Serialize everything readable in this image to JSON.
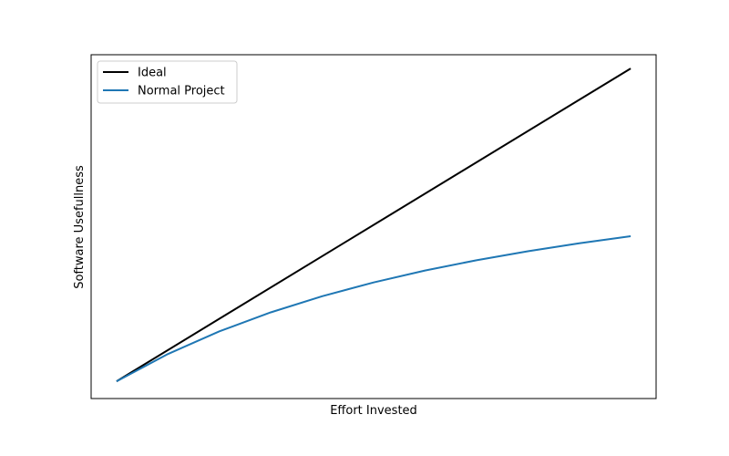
{
  "chart_data": {
    "type": "line",
    "xlabel": "Effort Invested",
    "ylabel": "Software Usefullness",
    "x_ticks": [],
    "y_ticks": [],
    "xlim": [
      0,
      1
    ],
    "ylim": [
      -0.055,
      1.044
    ],
    "grid": false,
    "legend_position": "top-left",
    "series": [
      {
        "name": "Ideal",
        "color": "#000000",
        "x": [
          0,
          1
        ],
        "y": [
          0,
          1
        ]
      },
      {
        "name": "Normal Project",
        "color": "#1f77b4",
        "x": [
          0,
          0.1,
          0.2,
          0.3,
          0.4,
          0.5,
          0.6,
          0.7,
          0.8,
          0.9,
          1.0
        ],
        "y": [
          0,
          0.0874,
          0.1598,
          0.2205,
          0.2721,
          0.3161,
          0.3541,
          0.3871,
          0.4159,
          0.4413,
          0.4638
        ]
      }
    ]
  }
}
